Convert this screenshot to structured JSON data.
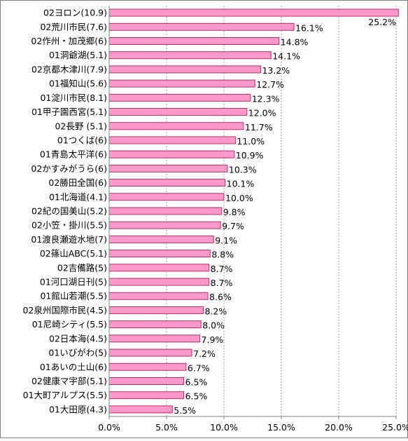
{
  "chart_data": {
    "type": "bar",
    "orientation": "horizontal",
    "categories": [
      "02ヨロン(10.9)",
      "02荒川市民(7.6)",
      "02作州・加茂郷(6)",
      "01洞爺湖(5.1)",
      "02京都木津川(7.9)",
      "01福知山(5.6)",
      "01淀川市民(8.1)",
      "01甲子園西宮(5.1)",
      "02長野 (5.1)",
      "01つくば(6)",
      "01青島太平洋(6)",
      "02かすみがうら(6)",
      "02勝田全国(6)",
      "01北海道(4.1)",
      "02紀の国美山(5.2)",
      "02小笠・掛川(5.5)",
      "01渡良瀬遊水地(7)",
      "02篠山ABC(5.1)",
      "02吉備路(5)",
      "01河口湖日刊(5)",
      "01館山若潮(5.5)",
      "02泉州国際市民(4.5)",
      "01尼崎シティ(5.5)",
      "02日本海(4.5)",
      "01いびがわ(5)",
      "01あいの土山(6)",
      "02健康マ宇部(5.1)",
      "01大町アルプス(5.5)",
      "01大田原(4.3)"
    ],
    "values": [
      25.2,
      16.1,
      14.8,
      14.1,
      13.2,
      12.7,
      12.3,
      12.0,
      11.7,
      11.0,
      10.9,
      10.3,
      10.1,
      10.0,
      9.8,
      9.7,
      9.1,
      8.8,
      8.7,
      8.7,
      8.6,
      8.2,
      8.0,
      7.9,
      7.2,
      6.7,
      6.5,
      6.5,
      5.5
    ],
    "value_labels": [
      "25.2%",
      "16.1%",
      "14.8%",
      "14.1%",
      "13.2%",
      "12.7%",
      "12.3%",
      "12.0%",
      "11.7%",
      "11.0%",
      "10.9%",
      "10.3%",
      "10.1%",
      "10.0%",
      "9.8%",
      "9.7%",
      "9.1%",
      "8.8%",
      "8.7%",
      "8.7%",
      "8.6%",
      "8.2%",
      "8.0%",
      "7.9%",
      "7.2%",
      "6.7%",
      "6.5%",
      "6.5%",
      "5.5%"
    ],
    "x_ticks": [
      0,
      5,
      10,
      15,
      20,
      25
    ],
    "x_tick_labels": [
      "0.0%",
      "5.0%",
      "10.0%",
      "15.0%",
      "20.0%",
      "25.0%"
    ],
    "xlim": [
      0,
      25
    ],
    "grid": "vertical dashed",
    "legend": "none",
    "bar_color": "#ff99cc",
    "bar_stroke": "#b0306a"
  }
}
